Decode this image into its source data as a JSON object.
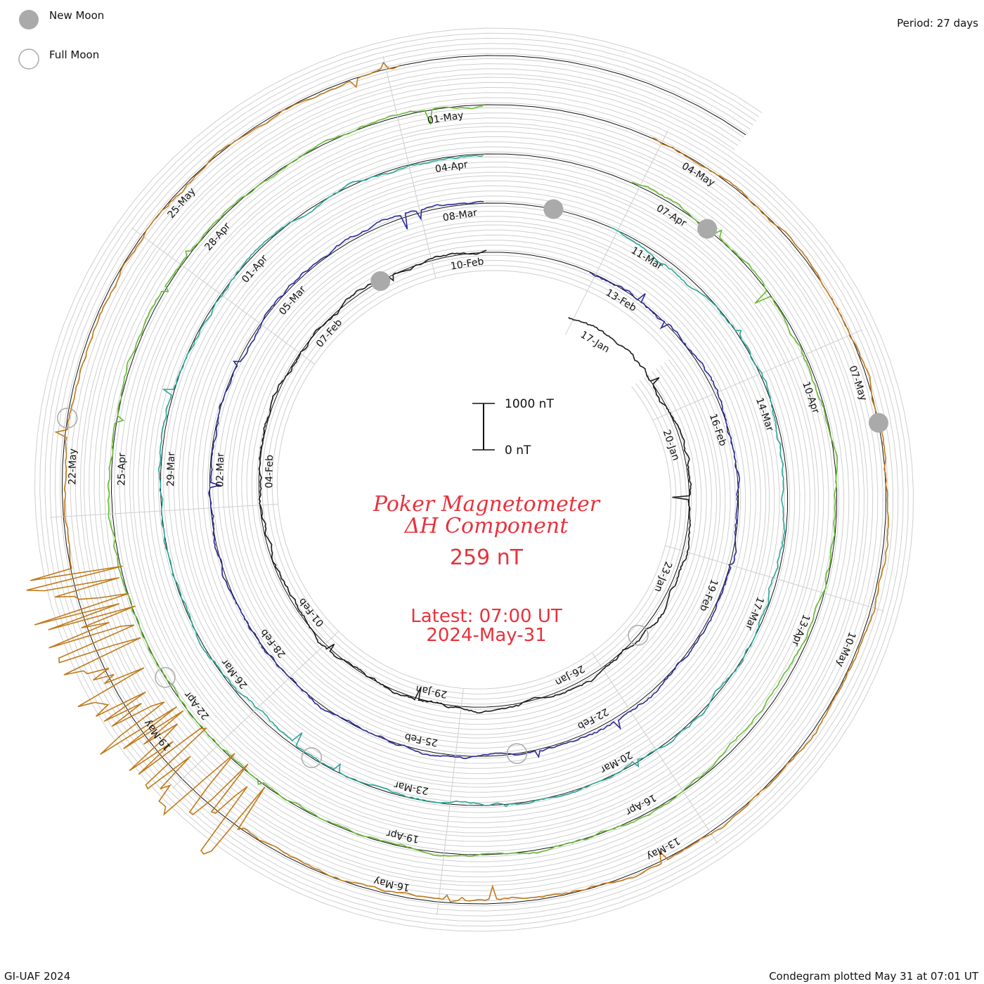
{
  "header": {
    "period": "Period: 27 days",
    "footer_left": "GI-UAF 2024",
    "footer_right": "Condegram plotted May 31 at 07:01 UT"
  },
  "legend": {
    "new_moon": "New Moon",
    "full_moon": "Full Moon",
    "new_moon_color": "#aaaaaa",
    "full_moon_color": "#aaaaaa"
  },
  "center": {
    "title_line1": "Poker Magnetometer",
    "title_line2": "ΔH Component",
    "value": "259 nT",
    "latest_line1": "Latest: 07:00 UT",
    "latest_line2": "2024-May-31",
    "text_color": "#e8323c"
  },
  "scale_bar": {
    "top_label": "1000 nT",
    "bottom_label": "0 nT"
  },
  "chart_data": {
    "type": "condegram-spiral",
    "title": "Poker Magnetometer",
    "subtitle": "ΔH Component",
    "period_days": 27,
    "scale_nT": [
      0,
      1000
    ],
    "date_labels": [
      [
        "17-Jan",
        "20-Jan",
        "23-Jan",
        "26-Jan",
        "29-Jan",
        "01-Feb",
        "04-Feb",
        "07-Feb",
        "10-Feb"
      ],
      [
        "13-Feb",
        "16-Feb",
        "19-Feb",
        "22-Feb",
        "25-Feb",
        "28-Feb",
        "02-Mar",
        "05-Mar",
        "08-Mar"
      ],
      [
        "11-Mar",
        "14-Mar",
        "17-Mar",
        "20-Mar",
        "23-Mar",
        "26-Mar",
        "29-Mar",
        "01-Apr",
        "04-Apr"
      ],
      [
        "07-Apr",
        "10-Apr",
        "13-Apr",
        "16-Apr",
        "19-Apr",
        "22-Apr",
        "25-Apr",
        "28-Apr",
        "01-May"
      ],
      [
        "04-May",
        "07-May",
        "10-May",
        "13-May",
        "16-May",
        "19-May",
        "22-May",
        "25-May"
      ]
    ],
    "series": [
      {
        "cycle": 1,
        "start": "2024-01-15",
        "end": "2024-02-11",
        "color": "#1a1a1a"
      },
      {
        "cycle": 2,
        "start": "2024-02-11",
        "end": "2024-03-09",
        "color": "#2a2a9a"
      },
      {
        "cycle": 3,
        "start": "2024-03-09",
        "end": "2024-04-05",
        "color": "#2aa69a"
      },
      {
        "cycle": 4,
        "start": "2024-04-05",
        "end": "2024-05-02",
        "color": "#66bb33"
      },
      {
        "cycle": 5,
        "start": "2024-05-02",
        "end": "2024-05-31",
        "color": "#c07a1a"
      }
    ],
    "new_moons": [
      "2024-02-09",
      "2024-03-10",
      "2024-04-08",
      "2024-05-08"
    ],
    "full_moons": [
      "2024-01-25",
      "2024-02-24",
      "2024-03-25",
      "2024-04-23",
      "2024-05-23"
    ],
    "latest_value_nT": 259,
    "latest_time": "2024-05-31 07:00 UT"
  }
}
